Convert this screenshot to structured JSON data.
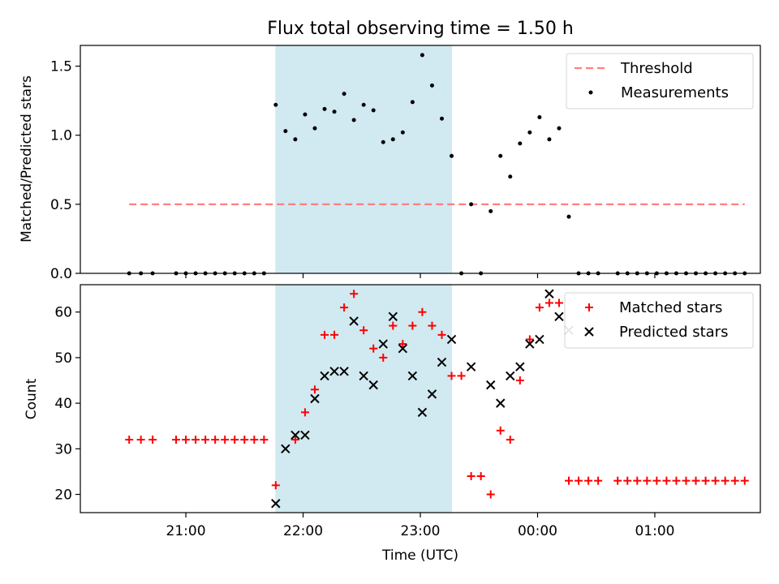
{
  "title": "Flux total observing time = 1.50 h",
  "xlabel": "Time (UTC)",
  "x_ticks": [
    "21:00",
    "22:00",
    "23:00",
    "00:00",
    "01:00"
  ],
  "shaded_region": {
    "x_start": "21:46",
    "x_end": "23:16",
    "color": "#add8e6"
  },
  "colors": {
    "threshold": "#ff7f7f",
    "measurement": "#000000",
    "matched": "#ff0000",
    "predicted": "#000000",
    "shade": "#add8e6"
  },
  "chart_data": [
    {
      "type": "scatter",
      "ylabel": "Matched/Predicted stars",
      "ylim": [
        0,
        1.65
      ],
      "yticks": [
        "0.0",
        "0.5",
        "1.0",
        "1.5"
      ],
      "legend": {
        "placement": "top-right",
        "entries": [
          "Threshold",
          "Measurements"
        ]
      },
      "series": [
        {
          "name": "Threshold",
          "style": "dashed-line",
          "x": [
            "20:31",
            "01:46"
          ],
          "y": [
            0.5,
            0.5
          ]
        },
        {
          "name": "Measurements",
          "style": "dot",
          "x": [
            "20:31",
            "20:37",
            "20:43",
            "20:55",
            "21:00",
            "21:05",
            "21:10",
            "21:15",
            "21:20",
            "21:25",
            "21:30",
            "21:35",
            "21:40",
            "21:46",
            "21:51",
            "21:56",
            "22:01",
            "22:06",
            "22:11",
            "22:16",
            "22:21",
            "22:26",
            "22:31",
            "22:36",
            "22:41",
            "22:46",
            "22:51",
            "22:56",
            "23:01",
            "23:06",
            "23:11",
            "23:16",
            "23:21",
            "23:26",
            "23:31",
            "23:36",
            "23:41",
            "23:46",
            "23:51",
            "23:56",
            "00:01",
            "00:06",
            "00:11",
            "00:16",
            "00:21",
            "00:26",
            "00:31",
            "00:41",
            "00:46",
            "00:51",
            "00:56",
            "01:01",
            "01:06",
            "01:11",
            "01:16",
            "01:21",
            "01:26",
            "01:31",
            "01:36",
            "01:41",
            "01:46"
          ],
          "y": [
            0,
            0,
            0,
            0,
            0,
            0,
            0,
            0,
            0,
            0,
            0,
            0,
            0,
            1.22,
            1.03,
            0.97,
            1.15,
            1.05,
            1.19,
            1.17,
            1.3,
            1.11,
            1.22,
            1.18,
            0.95,
            0.97,
            1.02,
            1.24,
            1.58,
            1.36,
            1.12,
            0.85,
            0,
            0.5,
            0,
            0.45,
            0.85,
            0.7,
            0.94,
            1.02,
            1.13,
            0.97,
            1.05,
            0.41,
            0,
            0,
            0,
            0,
            0,
            0,
            0,
            0,
            0,
            0,
            0,
            0,
            0,
            0,
            0,
            0,
            0
          ]
        }
      ]
    },
    {
      "type": "scatter",
      "ylabel": "Count",
      "xlabel": "Time (UTC)",
      "ylim": [
        16,
        66
      ],
      "yticks": [
        "20",
        "30",
        "40",
        "50",
        "60"
      ],
      "legend": {
        "placement": "top-right",
        "entries": [
          "Matched stars",
          "Predicted stars"
        ]
      },
      "series": [
        {
          "name": "Matched stars",
          "marker": "+",
          "x": [
            "20:31",
            "20:37",
            "20:43",
            "20:55",
            "21:00",
            "21:05",
            "21:10",
            "21:15",
            "21:20",
            "21:25",
            "21:30",
            "21:35",
            "21:40",
            "21:46",
            "21:56",
            "22:01",
            "22:06",
            "22:11",
            "22:16",
            "22:21",
            "22:26",
            "22:31",
            "22:36",
            "22:41",
            "22:46",
            "22:51",
            "22:56",
            "23:01",
            "23:06",
            "23:11",
            "23:16",
            "23:21",
            "23:26",
            "23:31",
            "23:36",
            "23:41",
            "23:46",
            "23:51",
            "23:56",
            "00:01",
            "00:06",
            "00:11",
            "00:16",
            "00:21",
            "00:26",
            "00:31",
            "00:41",
            "00:46",
            "00:51",
            "00:56",
            "01:01",
            "01:06",
            "01:11",
            "01:16",
            "01:21",
            "01:26",
            "01:31",
            "01:36",
            "01:41",
            "01:46"
          ],
          "y": [
            32,
            32,
            32,
            32,
            32,
            32,
            32,
            32,
            32,
            32,
            32,
            32,
            32,
            22,
            32,
            38,
            43,
            55,
            55,
            61,
            64,
            56,
            52,
            50,
            57,
            53,
            57,
            60,
            57,
            55,
            46,
            46,
            24,
            24,
            20,
            34,
            32,
            45,
            54,
            61,
            62,
            62,
            23,
            23,
            23,
            23,
            23,
            23,
            23,
            23,
            23,
            23,
            23,
            23,
            23,
            23,
            23,
            23,
            23,
            23
          ]
        },
        {
          "name": "Predicted stars",
          "marker": "x",
          "x": [
            "21:46",
            "21:51",
            "21:56",
            "22:01",
            "22:06",
            "22:11",
            "22:16",
            "22:21",
            "22:26",
            "22:31",
            "22:36",
            "22:41",
            "22:46",
            "22:51",
            "22:56",
            "23:01",
            "23:06",
            "23:11",
            "23:16",
            "23:26",
            "23:36",
            "23:41",
            "23:46",
            "23:51",
            "23:56",
            "00:01",
            "00:06",
            "00:11",
            "00:16"
          ],
          "y": [
            18,
            30,
            33,
            33,
            41,
            46,
            47,
            47,
            58,
            46,
            44,
            53,
            59,
            52,
            46,
            38,
            42,
            49,
            54,
            48,
            44,
            40,
            46,
            48,
            53,
            54,
            64,
            59,
            56
          ]
        }
      ]
    }
  ]
}
